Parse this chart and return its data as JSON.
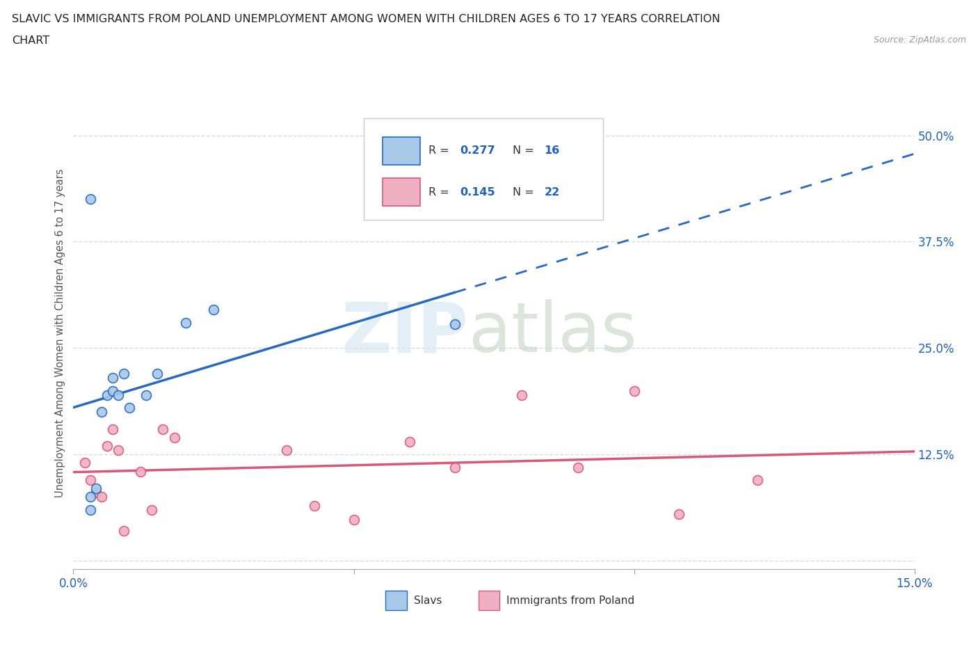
{
  "title_line1": "SLAVIC VS IMMIGRANTS FROM POLAND UNEMPLOYMENT AMONG WOMEN WITH CHILDREN AGES 6 TO 17 YEARS CORRELATION",
  "title_line2": "CHART",
  "source": "Source: ZipAtlas.com",
  "ylabel": "Unemployment Among Women with Children Ages 6 to 17 years",
  "xlim": [
    0.0,
    0.15
  ],
  "ylim": [
    -0.01,
    0.545
  ],
  "x_ticks": [
    0.0,
    0.05,
    0.1,
    0.15
  ],
  "x_tick_labels": [
    "0.0%",
    "",
    "",
    "15.0%"
  ],
  "y_ticks_right": [
    0.0,
    0.125,
    0.25,
    0.375,
    0.5
  ],
  "y_tick_labels_right": [
    "",
    "12.5%",
    "25.0%",
    "37.5%",
    "50.0%"
  ],
  "slavs_color": "#a8c8e8",
  "poland_color": "#f0b0c4",
  "slavs_line_color": "#2868c0",
  "poland_line_color": "#d85878",
  "legend_color": "#2060b8",
  "grid_color": "#d4dce8",
  "slavs_x": [
    0.003,
    0.004,
    0.005,
    0.006,
    0.007,
    0.007,
    0.008,
    0.009,
    0.01,
    0.013,
    0.015,
    0.02,
    0.025,
    0.068,
    0.003,
    0.003
  ],
  "slavs_y": [
    0.075,
    0.085,
    0.175,
    0.195,
    0.215,
    0.2,
    0.195,
    0.22,
    0.18,
    0.195,
    0.22,
    0.28,
    0.295,
    0.278,
    0.06,
    0.425
  ],
  "poland_x": [
    0.002,
    0.003,
    0.004,
    0.005,
    0.006,
    0.007,
    0.008,
    0.009,
    0.012,
    0.014,
    0.016,
    0.018,
    0.038,
    0.043,
    0.05,
    0.06,
    0.068,
    0.08,
    0.09,
    0.1,
    0.108,
    0.122
  ],
  "poland_y": [
    0.115,
    0.095,
    0.08,
    0.075,
    0.135,
    0.155,
    0.13,
    0.035,
    0.105,
    0.06,
    0.155,
    0.145,
    0.13,
    0.065,
    0.048,
    0.14,
    0.11,
    0.195,
    0.11,
    0.2,
    0.055,
    0.095
  ],
  "marker_size": 100,
  "bg_color": "#ffffff"
}
